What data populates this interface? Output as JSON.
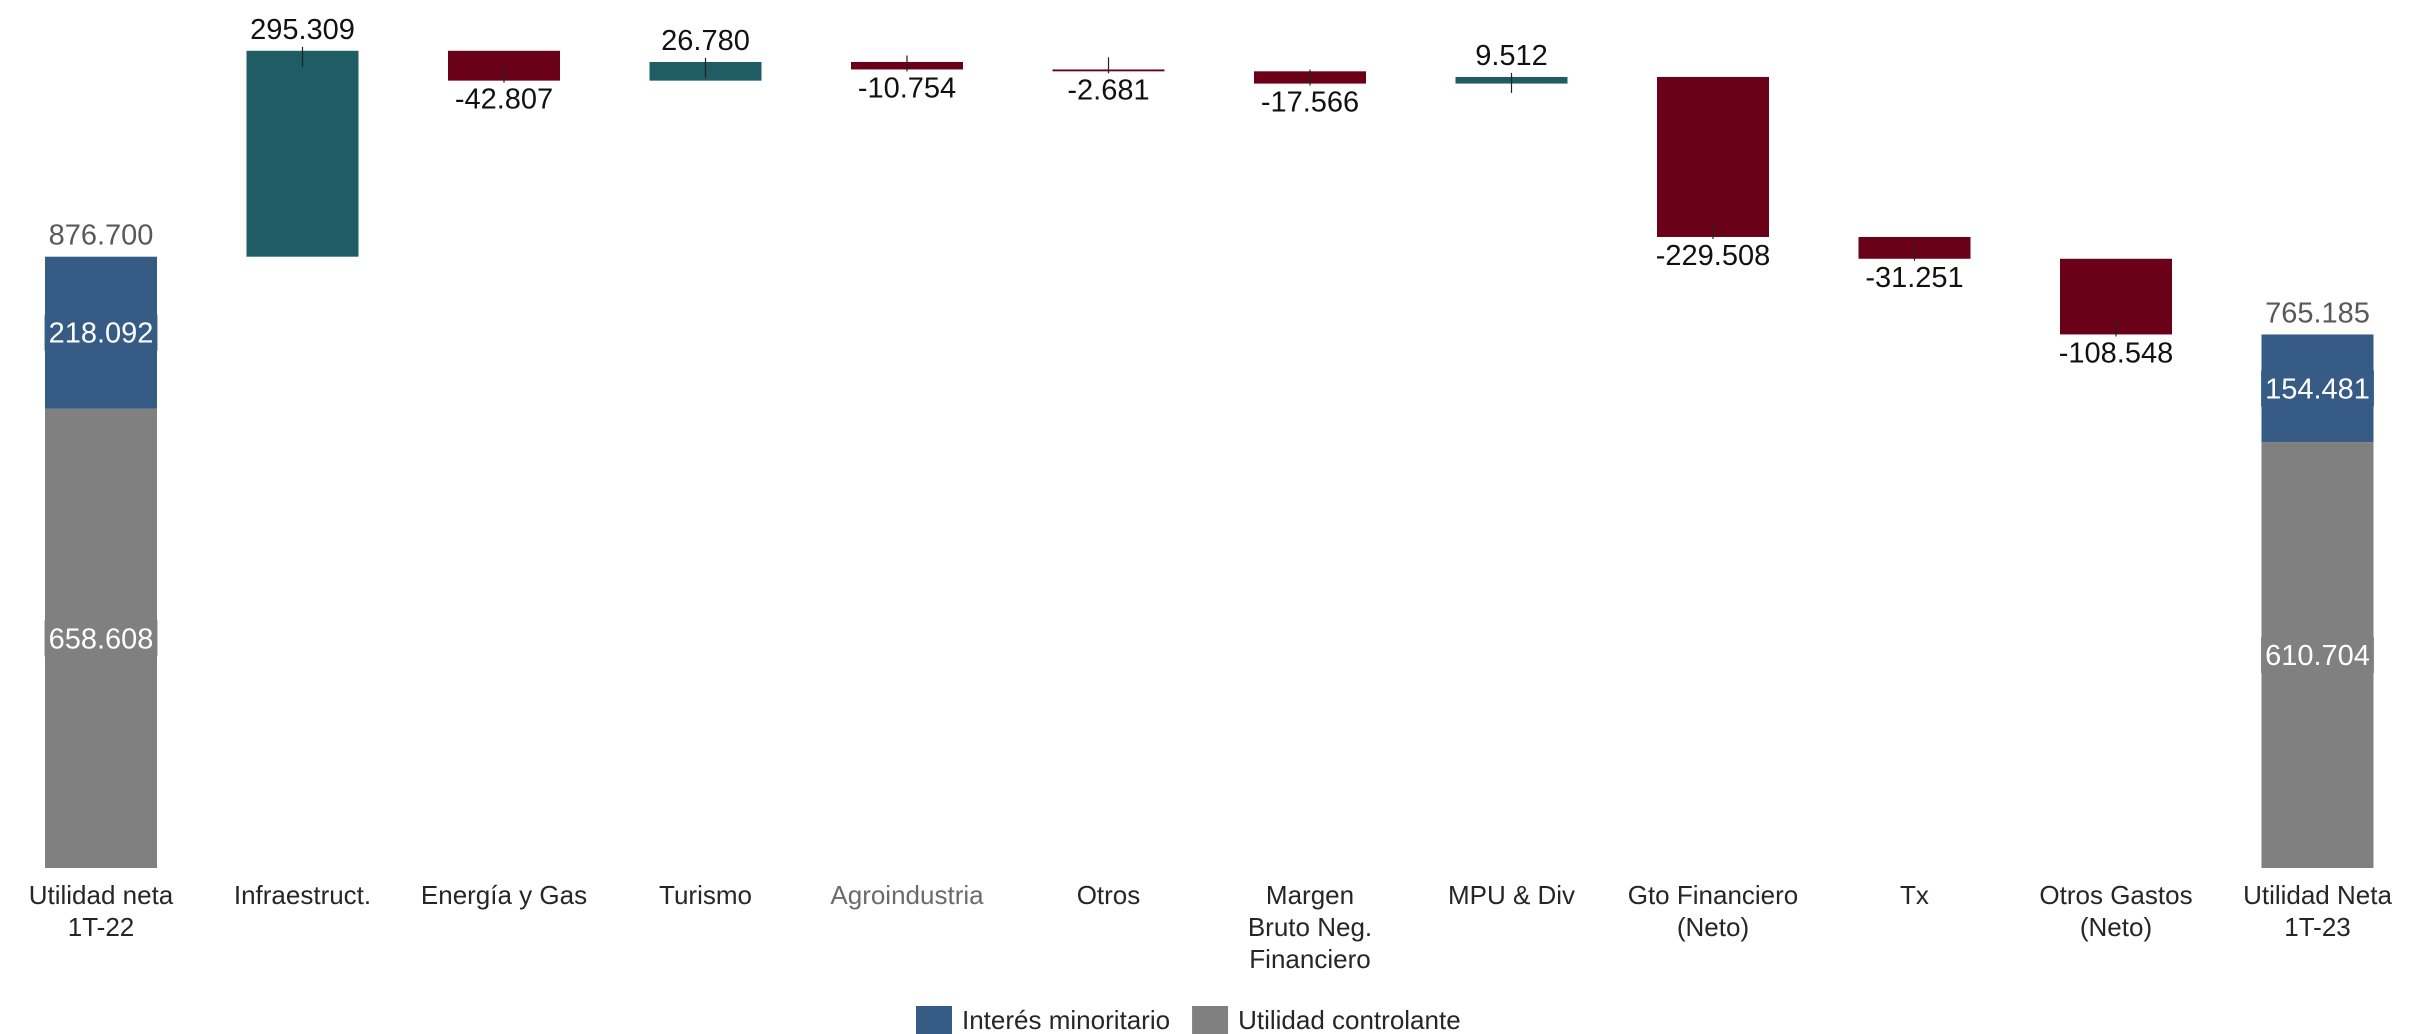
{
  "chart_data": {
    "type": "bar",
    "subtype": "waterfall",
    "colors": {
      "increase": "#1f5c63",
      "decrease": "#6b0019",
      "minority": "#365c85",
      "controlling": "#808080",
      "category_text": "#262626",
      "category_text_muted": "#6b6b6b"
    },
    "legend": {
      "position": "bottom-center",
      "items": [
        {
          "label": "Interés minoritario",
          "color": "#365c85"
        },
        {
          "label": "Utilidad controlante",
          "color": "#808080"
        }
      ]
    },
    "start": {
      "category": [
        "Utilidad neta",
        "1T-22"
      ],
      "total": 876700,
      "total_label": "876.700",
      "segments": [
        {
          "name": "Utilidad controlante",
          "value": 658608,
          "label": "658.608"
        },
        {
          "name": "Interés minoritario",
          "value": 218092,
          "label": "218.092"
        }
      ]
    },
    "steps": [
      {
        "category": [
          "Infraestruct."
        ],
        "value": 295309,
        "label": "295.309",
        "muted": false
      },
      {
        "category": [
          "Energía y Gas"
        ],
        "value": -42807,
        "label": "-42.807",
        "muted": false
      },
      {
        "category": [
          "Turismo"
        ],
        "value": 26780,
        "label": "26.780",
        "muted": false
      },
      {
        "category": [
          "Agroindustria"
        ],
        "value": -10754,
        "label": "-10.754",
        "muted": true
      },
      {
        "category": [
          "Otros"
        ],
        "value": -2681,
        "label": "-2.681",
        "muted": false
      },
      {
        "category": [
          "Margen",
          "Bruto Neg.",
          "Financiero"
        ],
        "value": -17566,
        "label": "-17.566",
        "muted": false
      },
      {
        "category": [
          "MPU & Div"
        ],
        "value": 9512,
        "label": "9.512",
        "muted": false
      },
      {
        "category": [
          "Gto Financiero",
          "(Neto)"
        ],
        "value": -229508,
        "label": "-229.508",
        "muted": false
      },
      {
        "category": [
          "Tx"
        ],
        "value": -31251,
        "label": "-31.251",
        "muted": false
      },
      {
        "category": [
          "Otros Gastos",
          "(Neto)"
        ],
        "value": -108548,
        "label": "-108.548",
        "muted": false
      }
    ],
    "end": {
      "category": [
        "Utilidad Neta",
        "1T-23"
      ],
      "total": 765185,
      "total_label": "765.185",
      "segments": [
        {
          "name": "Utilidad controlante",
          "value": 610704,
          "label": "610.704"
        },
        {
          "name": "Interés minoritario",
          "value": 154481,
          "label": "154.481"
        }
      ]
    },
    "ylim": [
      0,
      1176000
    ],
    "grid": false,
    "y_axis_visible": false
  }
}
